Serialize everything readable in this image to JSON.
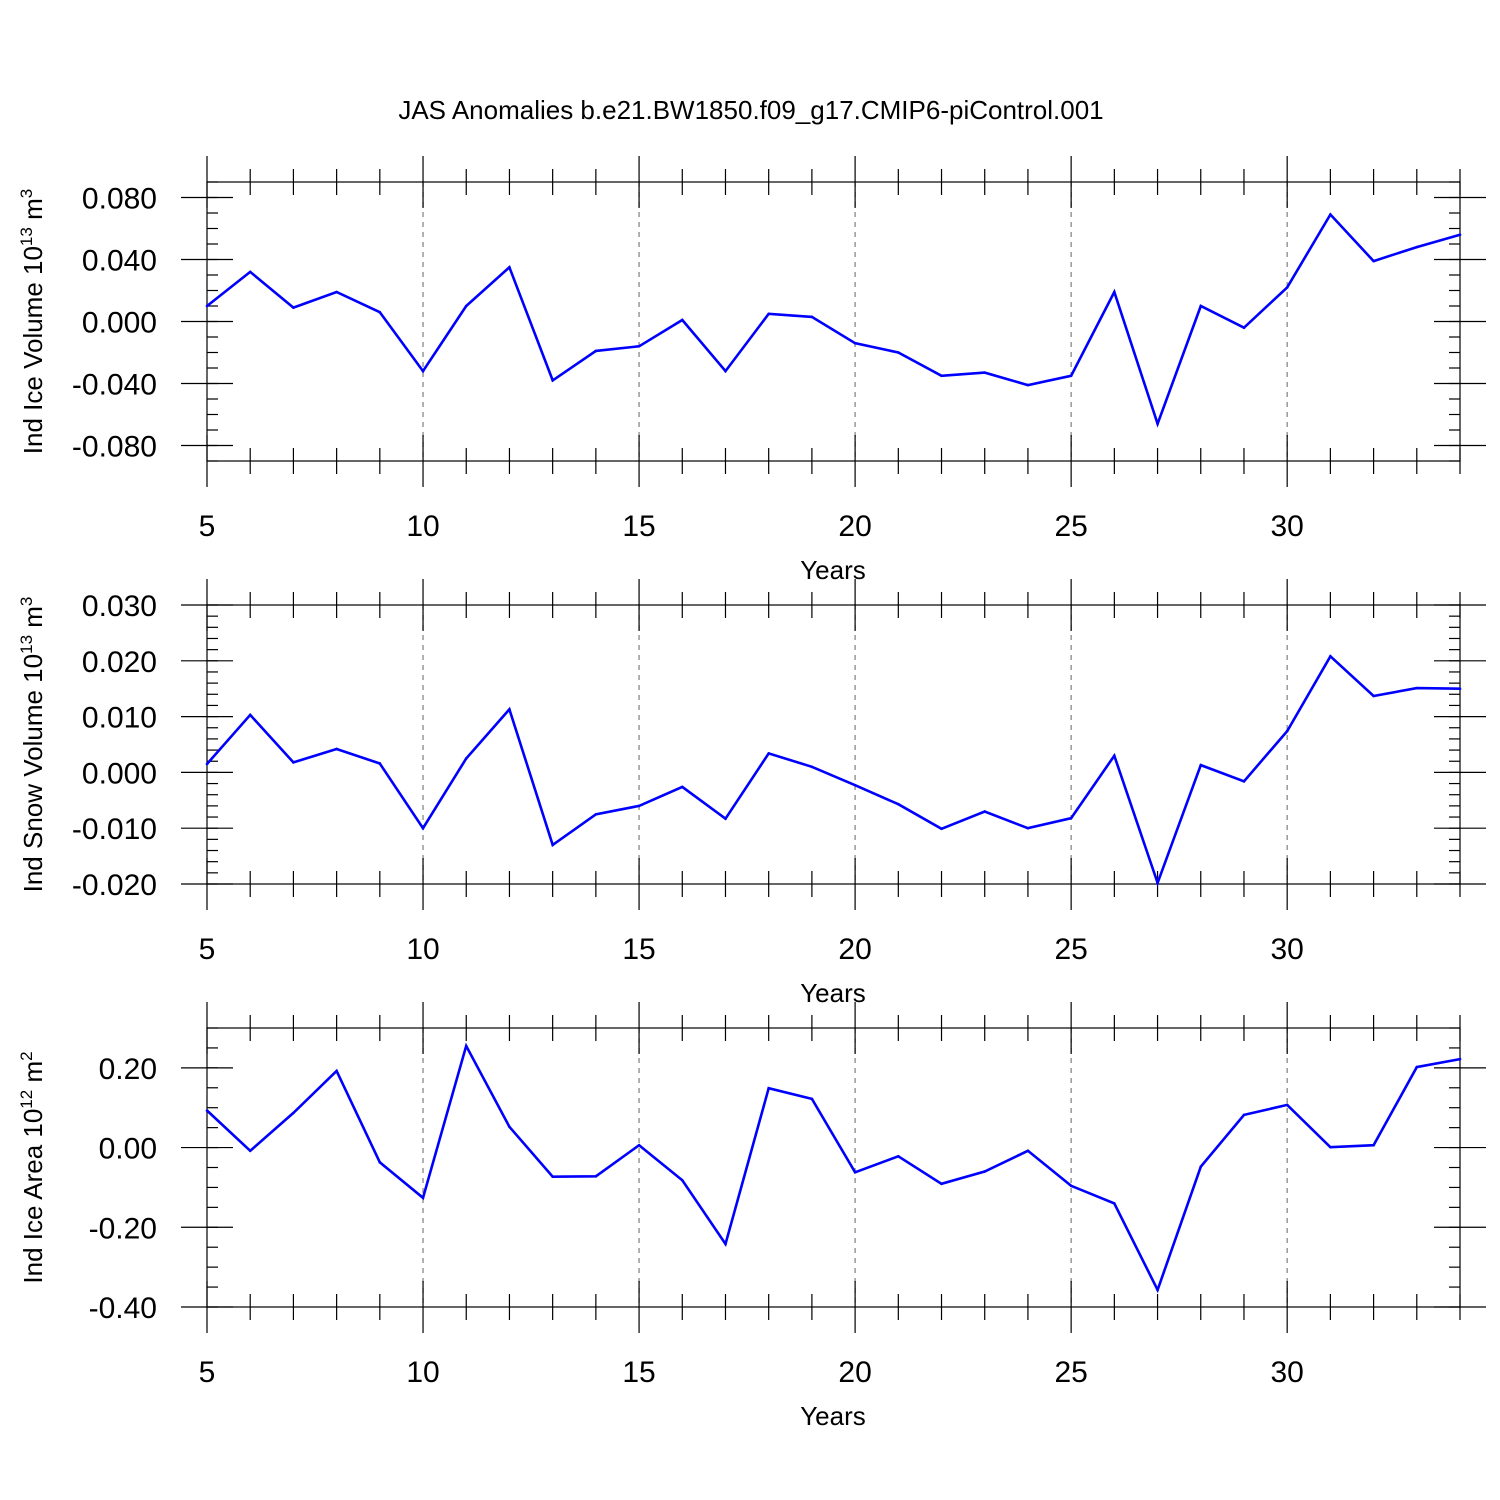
{
  "chart_data": [
    {
      "type": "line",
      "title": "JAS Anomalies b.e21.BW1850.f09_g17.CMIP6-piControl.001",
      "ylabel_main": "Ind Ice Volume 10",
      "ylabel_exp": "13",
      "ylabel_unit": " m",
      "ylabel_unit_exp": "3",
      "xlabel": "Years",
      "xlim": [
        5,
        34
      ],
      "ylim": [
        -0.09,
        0.09
      ],
      "xticks": [
        "5",
        "10",
        "15",
        "20",
        "25",
        "30"
      ],
      "xtick_values": [
        5,
        10,
        15,
        20,
        25,
        30
      ],
      "yticks": [
        "-0.080",
        "-0.040",
        "0.000",
        "0.040",
        "0.080"
      ],
      "ytick_values": [
        -0.08,
        -0.04,
        0.0,
        0.04,
        0.08
      ],
      "grid_x": [
        10,
        15,
        20,
        25,
        30
      ],
      "color": "#0000ff",
      "x": [
        5,
        6,
        7,
        8,
        9,
        10,
        11,
        12,
        13,
        14,
        15,
        16,
        17,
        18,
        19,
        20,
        21,
        22,
        23,
        24,
        25,
        26,
        27,
        28,
        29,
        30,
        31,
        32,
        33,
        34
      ],
      "values": [
        0.01,
        0.032,
        0.009,
        0.019,
        0.006,
        -0.032,
        0.01,
        0.035,
        -0.038,
        -0.019,
        -0.016,
        0.001,
        -0.032,
        0.005,
        0.003,
        -0.014,
        -0.02,
        -0.035,
        -0.033,
        -0.041,
        -0.035,
        0.019,
        -0.066,
        0.01,
        -0.004,
        0.022,
        0.069,
        0.039,
        0.048,
        0.056
      ]
    },
    {
      "type": "line",
      "ylabel_main": "Ind Snow Volume 10",
      "ylabel_exp": "13",
      "ylabel_unit": " m",
      "ylabel_unit_exp": "3",
      "xlabel": "Years",
      "xlim": [
        5,
        34
      ],
      "ylim": [
        -0.02,
        0.03
      ],
      "xticks": [
        "5",
        "10",
        "15",
        "20",
        "25",
        "30"
      ],
      "xtick_values": [
        5,
        10,
        15,
        20,
        25,
        30
      ],
      "yticks": [
        "-0.020",
        "-0.010",
        "0.000",
        "0.010",
        "0.020",
        "0.030"
      ],
      "ytick_values": [
        -0.02,
        -0.01,
        0.0,
        0.01,
        0.02,
        0.03
      ],
      "grid_x": [
        10,
        15,
        20,
        25,
        30
      ],
      "color": "#0000ff",
      "x": [
        5,
        6,
        7,
        8,
        9,
        10,
        11,
        12,
        13,
        14,
        15,
        16,
        17,
        18,
        19,
        20,
        21,
        22,
        23,
        24,
        25,
        26,
        27,
        28,
        29,
        30,
        31,
        32,
        33,
        34
      ],
      "values": [
        0.0015,
        0.0103,
        0.0018,
        0.0042,
        0.0016,
        -0.01,
        0.0025,
        0.0113,
        -0.013,
        -0.0075,
        -0.006,
        -0.0026,
        -0.0083,
        0.0034,
        0.001,
        -0.0023,
        -0.0057,
        -0.0101,
        -0.007,
        -0.01,
        -0.0082,
        0.003,
        -0.0198,
        0.0013,
        -0.0016,
        0.0074,
        0.0208,
        0.0137,
        0.0151,
        0.015
      ]
    },
    {
      "type": "line",
      "ylabel_main": "Ind Ice Area 10",
      "ylabel_exp": "12",
      "ylabel_unit": " m",
      "ylabel_unit_exp": "2",
      "xlabel": "Years",
      "xlim": [
        5,
        34
      ],
      "ylim": [
        -0.4,
        0.3
      ],
      "xticks": [
        "5",
        "10",
        "15",
        "20",
        "25",
        "30"
      ],
      "xtick_values": [
        5,
        10,
        15,
        20,
        25,
        30
      ],
      "yticks": [
        "-0.40",
        "-0.20",
        "0.00",
        "0.20"
      ],
      "ytick_values": [
        -0.4,
        -0.2,
        0.0,
        0.2
      ],
      "grid_x": [
        10,
        15,
        20,
        25,
        30
      ],
      "color": "#0000ff",
      "x": [
        5,
        6,
        7,
        8,
        9,
        10,
        11,
        12,
        13,
        14,
        15,
        16,
        17,
        18,
        19,
        20,
        21,
        22,
        23,
        24,
        25,
        26,
        27,
        28,
        29,
        30,
        31,
        32,
        33,
        34
      ],
      "values": [
        0.093,
        -0.008,
        0.087,
        0.192,
        -0.037,
        -0.126,
        0.255,
        0.052,
        -0.073,
        -0.072,
        0.006,
        -0.082,
        -0.242,
        0.149,
        0.122,
        -0.062,
        -0.022,
        -0.091,
        -0.06,
        -0.008,
        -0.096,
        -0.14,
        -0.357,
        -0.048,
        0.082,
        0.107,
        0.001,
        0.006,
        0.202,
        0.222
      ]
    }
  ]
}
